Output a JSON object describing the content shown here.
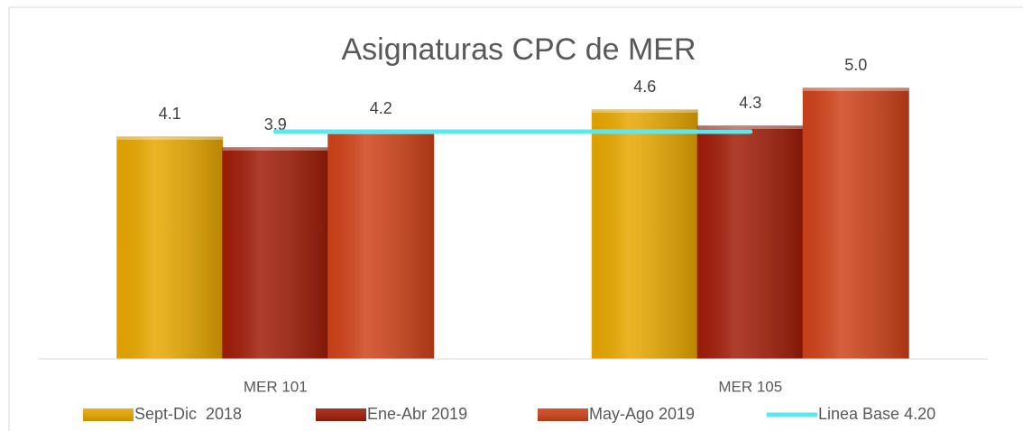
{
  "chart_data": {
    "type": "bar",
    "title": "Asignaturas CPC de MER",
    "categories": [
      "MER 101",
      "MER 105"
    ],
    "series": [
      {
        "name": "Sept-Dic  2018",
        "color": "#e8a800",
        "values": [
          4.1,
          4.6
        ],
        "value_labels": [
          "4.1",
          "4.6"
        ]
      },
      {
        "name": "Ene-Abr 2019",
        "color": "#a11d08",
        "values": [
          3.9,
          4.3
        ],
        "value_labels": [
          "3.9",
          "4.3"
        ]
      },
      {
        "name": "May-Ago 2019",
        "color": "#d0431a",
        "values": [
          4.2,
          5.0
        ],
        "value_labels": [
          "4.2",
          "5.0"
        ]
      },
      {
        "name": "Linea Base 4.20",
        "type": "line",
        "color": "#5ce8f0",
        "values": [
          4.2,
          4.2
        ]
      }
    ],
    "ylim": [
      0,
      5.6
    ],
    "yticks": [],
    "grid": false,
    "legend": "bottom"
  }
}
